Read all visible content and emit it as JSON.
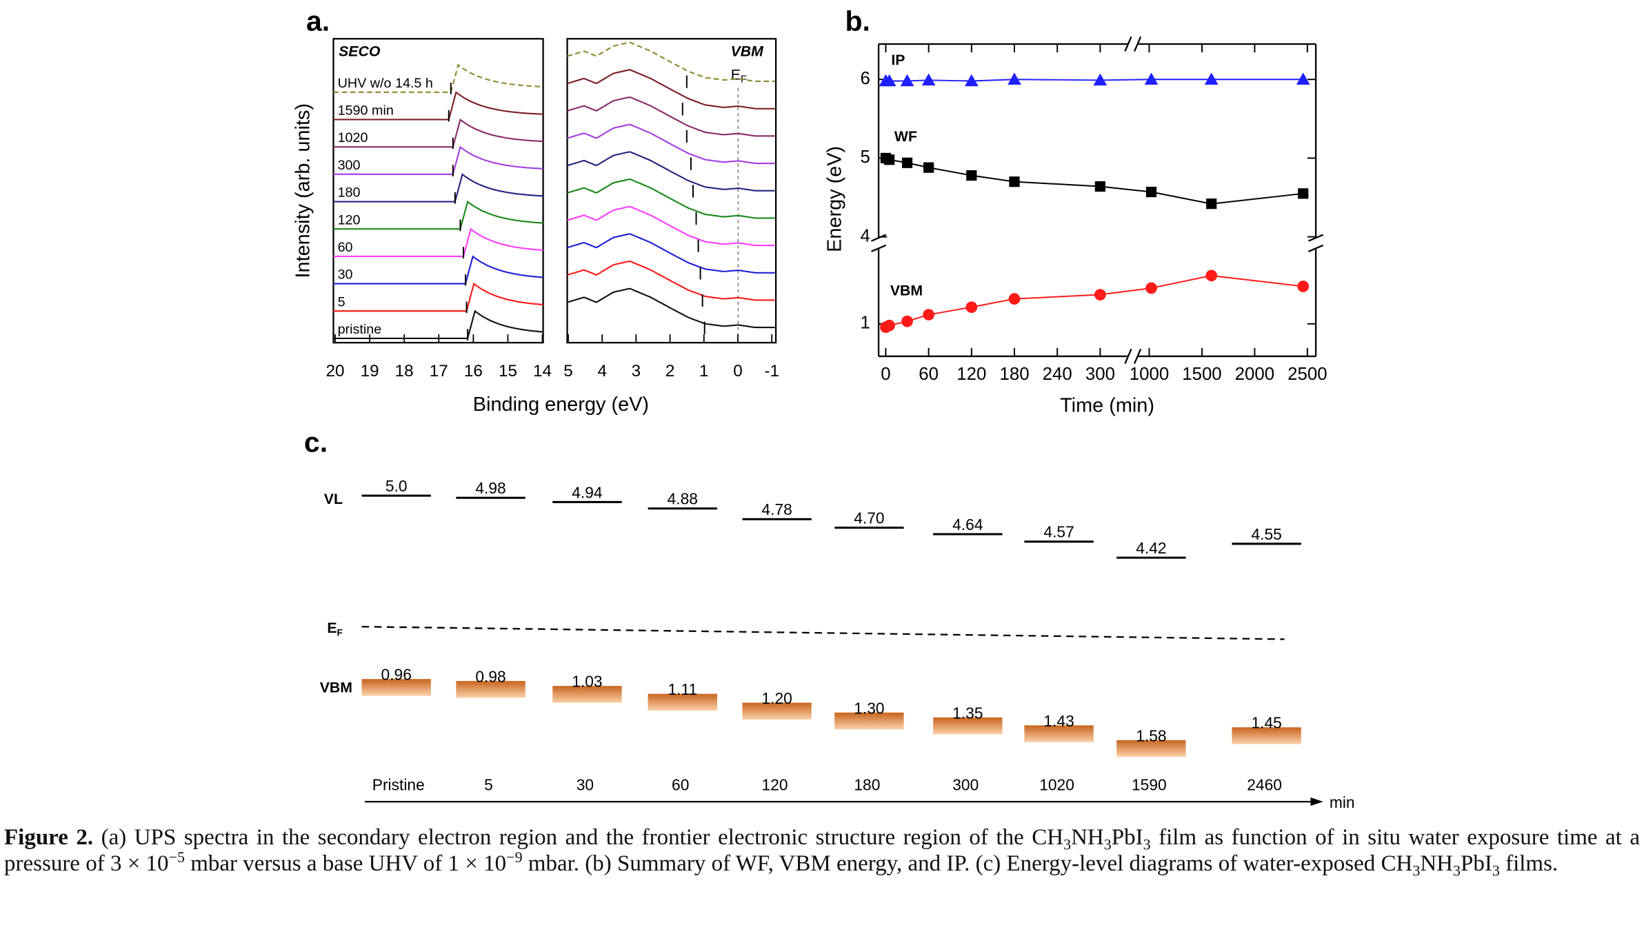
{
  "panel_labels": [
    "a.",
    "b.",
    "c."
  ],
  "panel_a": {
    "y_label": "Intensity (arb. units)",
    "x_label": "Binding energy (eV)",
    "seco": {
      "title": "SECO",
      "xlim": [
        20.05,
        13.98
      ],
      "xticks": [
        20,
        19,
        18,
        17,
        16,
        15,
        14
      ]
    },
    "vbm": {
      "title": "VBM",
      "xlim": [
        5.03,
        -1.12
      ],
      "xticks": [
        5,
        4,
        3,
        2,
        1,
        0,
        -1
      ],
      "ef_label": [
        "E",
        "F"
      ]
    },
    "traces": [
      {
        "label": "UHV w/o 14.5 h",
        "color": "#8a8a2e",
        "line_style": "dashed"
      },
      {
        "label": "1590 min",
        "color": "#7a1f24"
      },
      {
        "label": "1020",
        "color": "#8b2a6b"
      },
      {
        "label": "300",
        "color": "#a43fe0"
      },
      {
        "label": "180",
        "color": "#23237f"
      },
      {
        "label": "120",
        "color": "#1a8a1a"
      },
      {
        "label": "60",
        "color": "#ff3dff"
      },
      {
        "label": "30",
        "color": "#1f1fd8"
      },
      {
        "label": "5",
        "color": "#ff1a1a"
      },
      {
        "label": "pristine",
        "color": "#111111"
      }
    ]
  },
  "chart_data": {
    "type": "line",
    "x_label": "Time (min)",
    "y_label": "Energy (eV)",
    "x": [
      0,
      5,
      30,
      60,
      120,
      180,
      300,
      1020,
      1590,
      2460
    ],
    "x_segments": [
      {
        "xlim": [
          -10,
          345
        ],
        "xticks": [
          0,
          60,
          120,
          180,
          240,
          300
        ]
      },
      {
        "xlim": [
          840,
          2580
        ],
        "xticks": [
          1000,
          1500,
          2000,
          2500
        ]
      }
    ],
    "y_segments": [
      {
        "ylim": [
          0.61,
          1.97
        ],
        "yticks": [
          1
        ]
      },
      {
        "ylim": [
          3.92,
          6.45
        ],
        "yticks": [
          4,
          5,
          6
        ]
      }
    ],
    "series": [
      {
        "name": "IP",
        "color": "#1f1fff",
        "marker": "triangle",
        "values": [
          5.98,
          5.98,
          5.98,
          5.99,
          5.98,
          6.0,
          5.99,
          6.0,
          6.0,
          6.0
        ]
      },
      {
        "name": "WF",
        "color": "#000000",
        "marker": "square",
        "values": [
          5.0,
          4.98,
          4.94,
          4.88,
          4.78,
          4.7,
          4.64,
          4.57,
          4.42,
          4.55
        ]
      },
      {
        "name": "VBM",
        "color": "#ff1a1a",
        "marker": "circle",
        "values": [
          0.96,
          0.98,
          1.03,
          1.11,
          1.2,
          1.3,
          1.35,
          1.43,
          1.58,
          1.45
        ]
      }
    ]
  },
  "panel_c": {
    "vl_label": "VL",
    "ef_label": [
      "E",
      "F"
    ],
    "vbm_label": "VBM",
    "categories": [
      "Pristine",
      "5",
      "30",
      "60",
      "120",
      "180",
      "300",
      "1020",
      "1590",
      "2460"
    ],
    "x_unit": "min",
    "vl": {
      "values": [
        5.0,
        4.98,
        4.94,
        4.88,
        4.78,
        4.7,
        4.64,
        4.57,
        4.42,
        4.55
      ],
      "value_labels": [
        "5.0",
        "4.98",
        "4.94",
        "4.88",
        "4.78",
        "4.70",
        "4.64",
        "4.57",
        "4.42",
        "4.55"
      ]
    },
    "vbm": {
      "values": [
        0.96,
        0.98,
        1.03,
        1.11,
        1.2,
        1.3,
        1.35,
        1.43,
        1.58,
        1.45
      ],
      "value_labels": [
        "0.96",
        "0.98",
        "1.03",
        "1.11",
        "1.20",
        "1.30",
        "1.35",
        "1.43",
        "1.58",
        "1.45"
      ]
    }
  },
  "caption": {
    "label": "Figure 2.",
    "parts": [
      "(a) UPS spectra in the secondary electron region and the frontier electronic structure region of the CH",
      "3",
      "NH",
      "3",
      "PbI",
      "3",
      " film as function of in situ water exposure time at a pressure of 3 × 10",
      "−5",
      " mbar versus a base UHV of 1 × 10",
      "−9",
      " mbar. (b) Summary of WF, VBM energy, and IP. (c) Energy-level diagrams of water-exposed CH",
      "3",
      "NH",
      "3",
      "PbI",
      "3",
      " films."
    ]
  }
}
